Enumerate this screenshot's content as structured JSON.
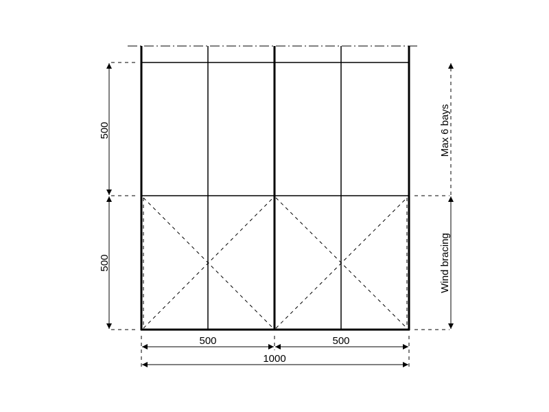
{
  "dimensions": {
    "left_upper": "500",
    "left_lower": "500",
    "bottom_left": "500",
    "bottom_right": "500",
    "bottom_total": "1000"
  },
  "annotations": {
    "max_bays": "Max 6 bays",
    "wind_bracing": "Wind bracing"
  }
}
